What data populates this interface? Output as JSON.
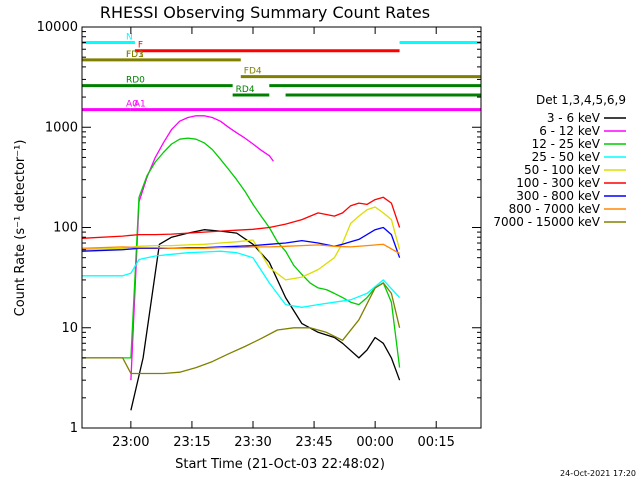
{
  "chart_data": {
    "type": "line",
    "title": "RHESSI Observing Summary Count Rates",
    "xlabel": "Start Time (21-Oct-03 22:48:02)",
    "ylabel": "Count Rate (s⁻¹ detector⁻¹)",
    "footer": "24-Oct-2021 17:20",
    "x_unit": "minutes after 22:48:02",
    "xlim": [
      0,
      98
    ],
    "ylim": [
      1,
      10000
    ],
    "y_scale": "log",
    "x_ticks": [
      {
        "x": 12,
        "label": "23:00"
      },
      {
        "x": 27,
        "label": "23:15"
      },
      {
        "x": 42,
        "label": "23:30"
      },
      {
        "x": 57,
        "label": "23:45"
      },
      {
        "x": 72,
        "label": "00:00"
      },
      {
        "x": 87,
        "label": "00:15"
      }
    ],
    "y_ticks": [
      {
        "y": 1,
        "label": "1"
      },
      {
        "y": 10,
        "label": "10"
      },
      {
        "y": 100,
        "label": "100"
      },
      {
        "y": 1000,
        "label": "1000"
      },
      {
        "y": 10000,
        "label": "10000"
      }
    ],
    "legend_title": "Det 1,3,4,5,6,9",
    "legend_position": "right",
    "series": [
      {
        "name": "3 - 6 keV",
        "color": "#000000",
        "x": [
          12,
          15,
          19,
          22,
          26,
          30,
          34,
          38,
          42,
          46,
          50,
          54,
          58,
          62,
          64,
          68,
          70,
          72,
          74,
          76,
          78
        ],
        "y": [
          1.5,
          5,
          68,
          80,
          88,
          95,
          92,
          88,
          68,
          45,
          20,
          11,
          9,
          8,
          7,
          5,
          6,
          8,
          7,
          5,
          3
        ]
      },
      {
        "name": "6 - 12 keV",
        "color": "#ff00ff",
        "x": [
          12,
          14,
          16,
          18,
          20,
          22,
          24,
          26,
          28,
          30,
          32,
          34,
          36,
          38,
          40,
          42,
          44,
          46,
          47
        ],
        "y": [
          3,
          180,
          320,
          500,
          700,
          950,
          1150,
          1250,
          1300,
          1300,
          1250,
          1150,
          1000,
          880,
          780,
          680,
          590,
          520,
          460
        ]
      },
      {
        "name": "12 - 25 keV",
        "color": "#00cc00",
        "x": [
          0,
          10,
          12,
          14,
          16,
          18,
          20,
          22,
          24,
          26,
          28,
          30,
          32,
          34,
          36,
          38,
          40,
          42,
          44,
          46,
          48,
          50,
          52,
          54,
          56,
          58,
          60,
          62,
          64,
          66,
          68,
          70,
          72,
          74,
          76,
          78
        ],
        "y": [
          5,
          5,
          5,
          200,
          330,
          450,
          560,
          680,
          760,
          780,
          760,
          700,
          600,
          480,
          380,
          300,
          230,
          170,
          130,
          100,
          72,
          58,
          42,
          34,
          28,
          25,
          24,
          22,
          20,
          18,
          17,
          20,
          25,
          28,
          18,
          4
        ]
      },
      {
        "name": "25 - 50 keV",
        "color": "#00ffff",
        "x": [
          0,
          10,
          12,
          14,
          18,
          22,
          26,
          30,
          34,
          38,
          42,
          46,
          50,
          54,
          58,
          62,
          66,
          70,
          74,
          78
        ],
        "y": [
          33,
          33,
          35,
          48,
          52,
          54,
          56,
          57,
          58,
          56,
          50,
          28,
          17,
          16,
          17,
          18,
          19,
          22,
          30,
          20
        ]
      },
      {
        "name": "50 - 100 keV",
        "color": "#dddd00",
        "x": [
          0,
          10,
          14,
          18,
          22,
          26,
          30,
          34,
          38,
          42,
          46,
          50,
          54,
          58,
          62,
          64,
          66,
          68,
          70,
          72,
          74,
          76,
          78
        ],
        "y": [
          60,
          62,
          65,
          66,
          66,
          67,
          68,
          70,
          72,
          75,
          40,
          30,
          32,
          38,
          50,
          70,
          110,
          130,
          150,
          160,
          140,
          120,
          60
        ]
      },
      {
        "name": "100 - 300 keV",
        "color": "#ff0000",
        "x": [
          0,
          10,
          14,
          18,
          22,
          26,
          30,
          34,
          38,
          42,
          46,
          50,
          54,
          58,
          62,
          64,
          66,
          68,
          70,
          72,
          74,
          76,
          78
        ],
        "y": [
          78,
          82,
          85,
          85,
          86,
          88,
          90,
          92,
          94,
          96,
          100,
          108,
          120,
          140,
          130,
          140,
          165,
          175,
          170,
          190,
          200,
          175,
          100
        ]
      },
      {
        "name": "300 - 800 keV",
        "color": "#0000ff",
        "x": [
          0,
          10,
          14,
          18,
          22,
          26,
          30,
          34,
          38,
          42,
          46,
          50,
          54,
          58,
          62,
          64,
          66,
          68,
          70,
          72,
          74,
          76,
          78
        ],
        "y": [
          58,
          60,
          62,
          62,
          62,
          63,
          63,
          64,
          65,
          66,
          68,
          70,
          74,
          70,
          65,
          68,
          72,
          76,
          85,
          95,
          100,
          85,
          50
        ]
      },
      {
        "name": "800 - 7000 keV",
        "color": "#ff8800",
        "x": [
          0,
          10,
          14,
          18,
          22,
          26,
          30,
          34,
          38,
          42,
          46,
          50,
          54,
          58,
          62,
          66,
          70,
          74,
          78
        ],
        "y": [
          62,
          64,
          63,
          63,
          62,
          62,
          62,
          63,
          63,
          64,
          64,
          65,
          66,
          67,
          65,
          64,
          66,
          68,
          55
        ]
      },
      {
        "name": "7000 - 15000 keV",
        "color": "#808000",
        "x": [
          0,
          10,
          12,
          14,
          16,
          20,
          24,
          28,
          32,
          36,
          40,
          44,
          48,
          52,
          56,
          60,
          64,
          68,
          72,
          74,
          76,
          78
        ],
        "y": [
          5,
          5,
          3.5,
          3.5,
          3.5,
          3.5,
          3.6,
          4,
          4.6,
          5.5,
          6.5,
          7.8,
          9.5,
          10,
          10,
          9,
          7.5,
          12,
          25,
          28,
          22,
          10
        ]
      }
    ],
    "state_bars": [
      {
        "label": "N",
        "color": "#00ffff",
        "level": 7000,
        "segments": [
          [
            0,
            13
          ],
          [
            78,
            98
          ]
        ]
      },
      {
        "label": "F",
        "color": "#ff0000",
        "level": 5800,
        "segments": [
          [
            13,
            78
          ]
        ]
      },
      {
        "label": "FD1",
        "color": "#808000",
        "level": 4700,
        "segments": [
          [
            0,
            39
          ]
        ]
      },
      {
        "label": "FD3",
        "color": "#808000",
        "level": 4700,
        "segments": []
      },
      {
        "label": "FD4",
        "color": "#808000",
        "level": 3200,
        "segments": [
          [
            39,
            98
          ]
        ]
      },
      {
        "label": "RD0",
        "color": "#008000",
        "level": 2600,
        "segments": [
          [
            0,
            37
          ],
          [
            46,
            98
          ]
        ]
      },
      {
        "label": "RD4",
        "color": "#008000",
        "level": 2100,
        "segments": [
          [
            37,
            46
          ],
          [
            50,
            98
          ]
        ]
      },
      {
        "label": "A0",
        "color": "#ff00ff",
        "level": 1500,
        "segments": [
          [
            0,
            12
          ]
        ]
      },
      {
        "label": "A1",
        "color": "#ff00ff",
        "level": 1500,
        "segments": [
          [
            12,
            98
          ]
        ]
      }
    ]
  }
}
